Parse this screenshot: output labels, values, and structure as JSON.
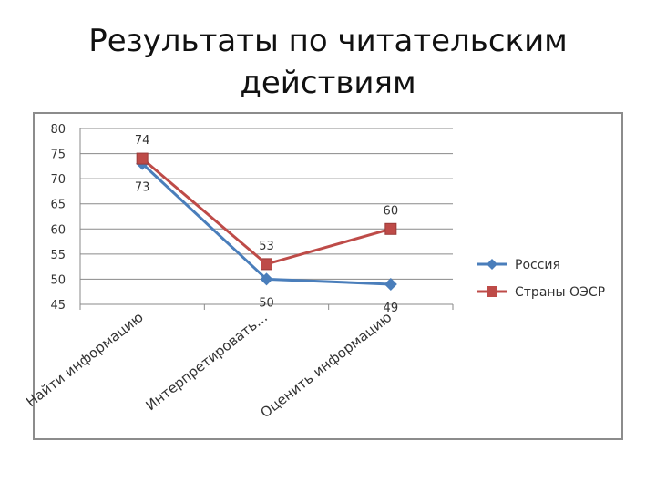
{
  "title": {
    "line1": "Результаты по читательским",
    "line2": "действиям"
  },
  "chart_data": {
    "type": "line",
    "categories": [
      "Найти информацию",
      "Интерпретировать...",
      "Оценить информацию"
    ],
    "ylim": [
      45,
      80
    ],
    "yticks": [
      "45",
      "50",
      "55",
      "60",
      "65",
      "70",
      "75",
      "80"
    ],
    "grid": true,
    "legend_position": "right",
    "series": [
      {
        "name": "Россия",
        "values": [
          73,
          50,
          49
        ],
        "labels": [
          "73",
          "50",
          "49"
        ],
        "color": "#4a7ebb",
        "marker": "diamond",
        "label_position": "below"
      },
      {
        "name": "Страны ОЭСР",
        "values": [
          74,
          53,
          60
        ],
        "labels": [
          "74",
          "53",
          "60"
        ],
        "color": "#be4b48",
        "marker": "square",
        "label_position": "above"
      }
    ]
  }
}
